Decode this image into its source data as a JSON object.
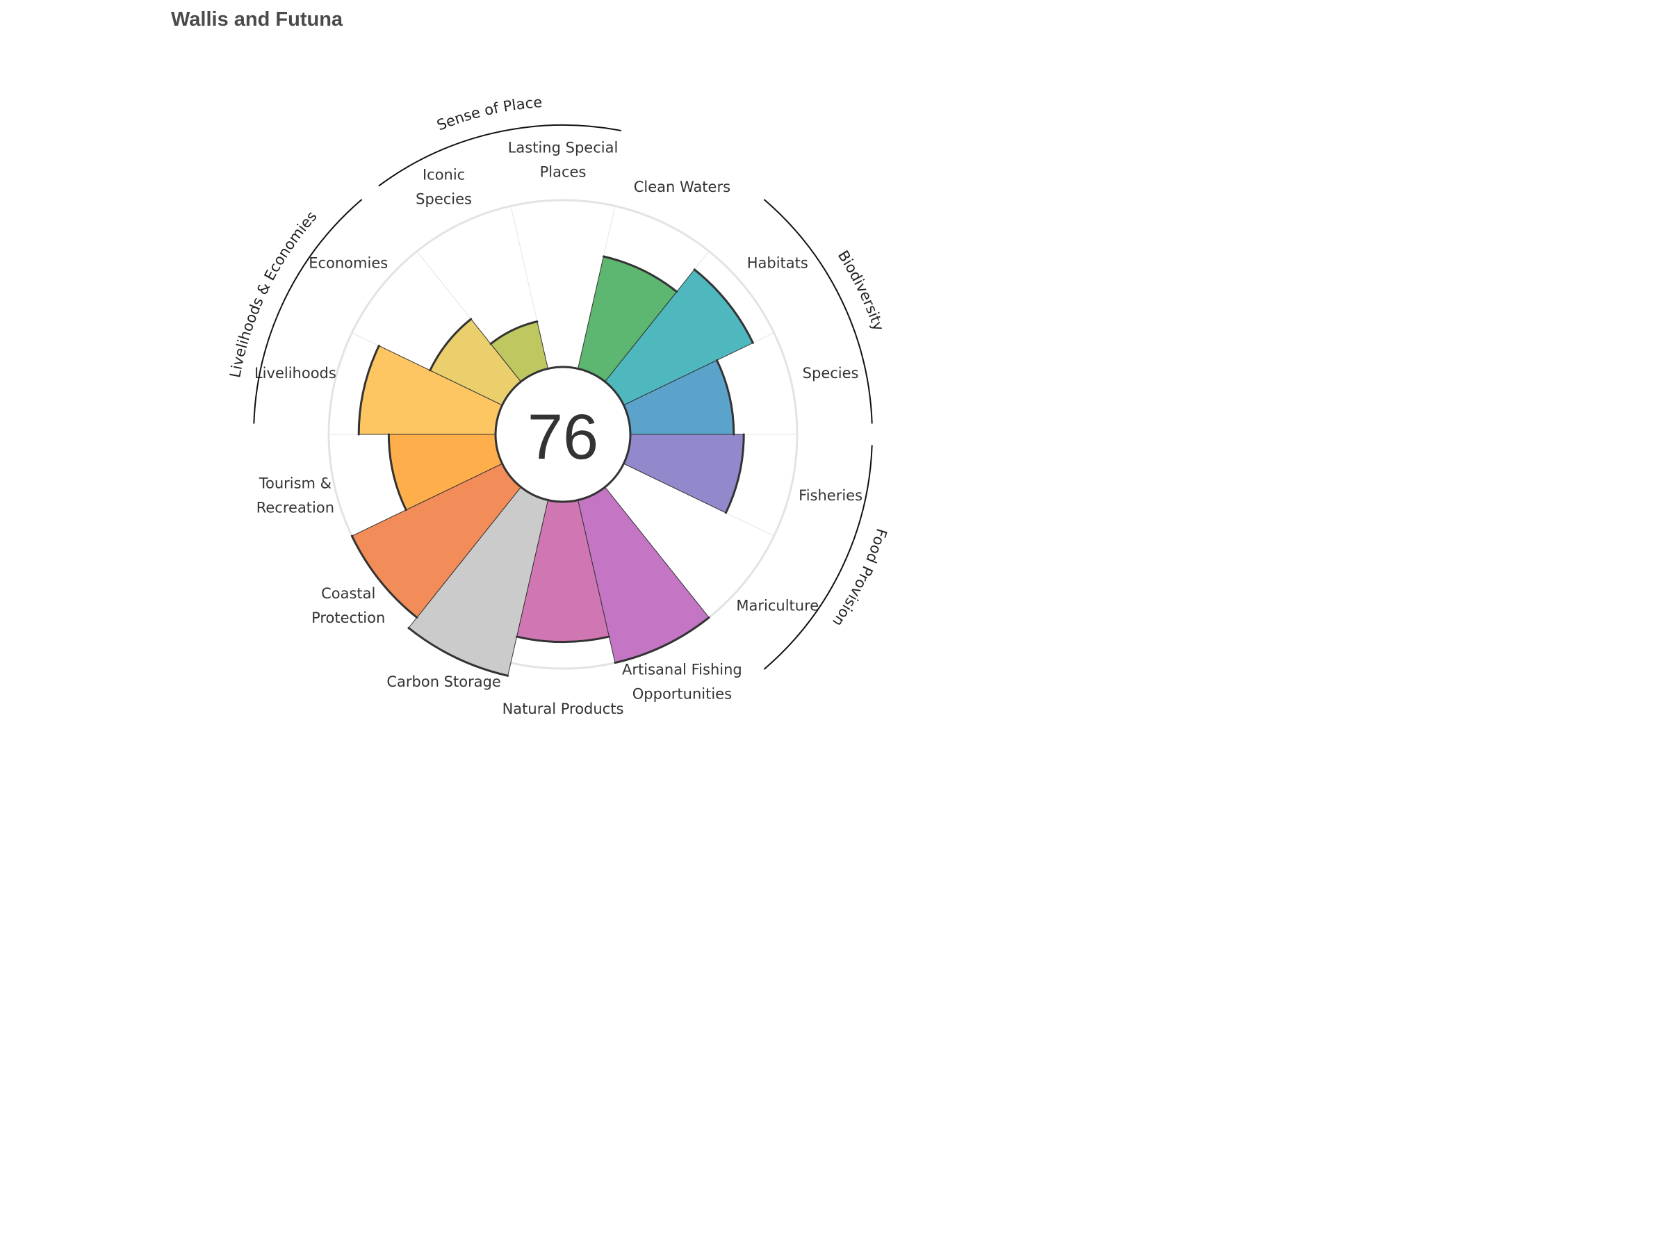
{
  "chart_data": {
    "type": "bar",
    "subtype": "polar-rose",
    "title": "Wallis and Futuna",
    "overall_score": "76",
    "rlim": [
      0,
      100
    ],
    "categories": [
      "Fisheries",
      "Mariculture",
      "Artisanal Fishing Opportunities",
      "Natural Products",
      "Carbon Storage",
      "Coastal Protection",
      "Tourism & Recreation",
      "Livelihoods",
      "Economies",
      "Iconic Species",
      "Lasting Special Places",
      "Clean Waters",
      "Habitats",
      "Species"
    ],
    "values": [
      68,
      null,
      100,
      84,
      108,
      100,
      64,
      82,
      48,
      29,
      null,
      69,
      86,
      62
    ],
    "colors": [
      "#9189cb",
      "#9ba3d8",
      "#c476c5",
      "#d077b3",
      "#cbcbcb",
      "#f28c58",
      "#feae4a",
      "#fdc662",
      "#ebcf6d",
      "#bfc761",
      "#93c96a",
      "#5db770",
      "#4fb8bf",
      "#5ba3cb"
    ],
    "label_lines": [
      [
        "Fisheries"
      ],
      [
        "Mariculture"
      ],
      [
        "Artisanal Fishing",
        "Opportunities"
      ],
      [
        "Natural Products"
      ],
      [
        "Carbon Storage"
      ],
      [
        "Coastal",
        "Protection"
      ],
      [
        "Tourism &",
        "Recreation"
      ],
      [
        "Livelihoods"
      ],
      [
        "Economies"
      ],
      [
        "Iconic",
        "Species"
      ],
      [
        "Lasting Special",
        "Places"
      ],
      [
        "Clean Waters"
      ],
      [
        "Habitats"
      ],
      [
        "Species"
      ]
    ],
    "groups": [
      {
        "name": "Food Provision",
        "members": [
          "Fisheries",
          "Mariculture"
        ]
      },
      {
        "name": "Biodiversity",
        "members": [
          "Habitats",
          "Species"
        ]
      },
      {
        "name": "Sense of Place",
        "members": [
          "Iconic Species",
          "Lasting Special Places"
        ]
      },
      {
        "name": "Livelihoods & Economies",
        "members": [
          "Livelihoods",
          "Economies"
        ]
      }
    ],
    "grid": true,
    "legend": "none"
  }
}
